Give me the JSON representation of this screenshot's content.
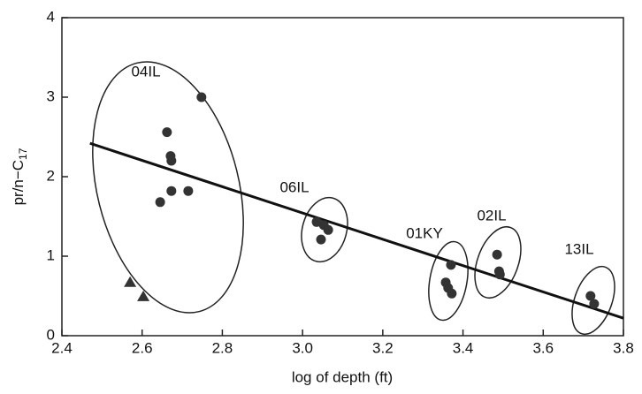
{
  "chart_data": {
    "type": "scatter",
    "xlabel": "log of depth (ft)",
    "ylabel": {
      "text": "pr/n−C",
      "sub": "17"
    },
    "xlim": [
      2.4,
      3.8
    ],
    "ylim": [
      0,
      4
    ],
    "xticks": [
      2.4,
      2.6,
      2.8,
      {
        "value": 3,
        "label": "3.0"
      },
      3.2,
      3.4,
      3.6,
      3.8
    ],
    "yticks": [
      0,
      1,
      2,
      3,
      4
    ],
    "color": "#333333",
    "series": [
      {
        "name": "04IL",
        "x": [
          2.748,
          2.662,
          2.671,
          2.673,
          2.673,
          2.715,
          2.645,
          2.57,
          2.603
        ],
        "values": [
          3.0,
          2.56,
          2.26,
          2.2,
          1.82,
          1.82,
          1.68,
          0.67,
          0.49
        ],
        "markers": [
          "circle",
          "circle",
          "circle",
          "circle",
          "circle",
          "circle",
          "circle",
          "triangle",
          "triangle"
        ]
      },
      {
        "name": "06IL",
        "x": [
          3.035,
          3.053,
          3.064,
          3.046
        ],
        "values": [
          1.43,
          1.39,
          1.33,
          1.21
        ]
      },
      {
        "name": "01KY",
        "x": [
          3.37,
          3.357,
          3.363,
          3.372
        ],
        "values": [
          0.89,
          0.67,
          0.6,
          0.53
        ]
      },
      {
        "name": "02IL",
        "x": [
          3.485,
          3.49,
          3.492
        ],
        "values": [
          1.02,
          0.81,
          0.77
        ]
      },
      {
        "name": "13IL",
        "x": [
          3.718,
          3.727
        ],
        "values": [
          0.5,
          0.4
        ]
      }
    ],
    "trend": {
      "x": [
        2.47,
        3.8
      ],
      "values": [
        2.42,
        0.22
      ]
    }
  }
}
